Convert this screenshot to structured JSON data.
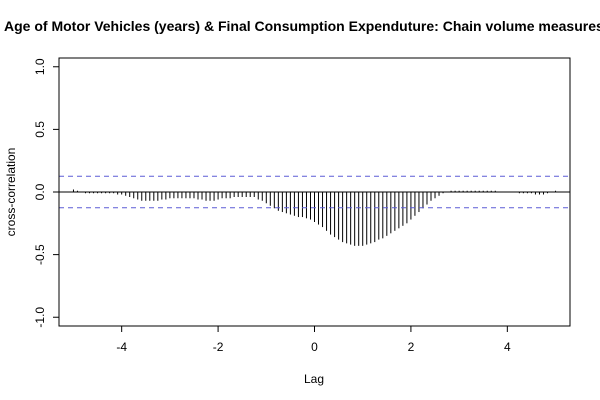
{
  "chart_data": {
    "type": "bar",
    "title": "Age of Motor Vehicles (years) & Final Consumption Expenduture: Chain volume measures",
    "xlabel": "Lag",
    "ylabel": "cross-correlation",
    "xlim": [
      -5.3,
      5.3
    ],
    "ylim": [
      -1.07,
      1.07
    ],
    "x_ticks": [
      -4,
      -2,
      0,
      2,
      4
    ],
    "x_tick_labels": [
      "-4",
      "-2",
      "0",
      "2",
      "4"
    ],
    "y_ticks": [
      -1.0,
      -0.5,
      0.0,
      0.5,
      1.0
    ],
    "y_tick_labels": [
      "-1.0",
      "-0.5",
      "0.0",
      "0.5",
      "1.0"
    ],
    "confidence_bound": 0.126,
    "grid": false,
    "colors": {
      "bars": "#000000",
      "confidence_lines": "#5b5bd6",
      "zero_line": "#000000",
      "axes": "#000000"
    },
    "series": [
      {
        "x": [
          -5.0,
          -4.9167,
          -4.8333,
          -4.75,
          -4.6667,
          -4.5833,
          -4.5,
          -4.4167,
          -4.3333,
          -4.25,
          -4.1667,
          -4.0833,
          -4.0,
          -3.9167,
          -3.8333,
          -3.75,
          -3.6667,
          -3.5833,
          -3.5,
          -3.4167,
          -3.3333,
          -3.25,
          -3.1667,
          -3.0833,
          -3.0,
          -2.9167,
          -2.8333,
          -2.75,
          -2.6667,
          -2.5833,
          -2.5,
          -2.4167,
          -2.3333,
          -2.25,
          -2.1667,
          -2.0833,
          -2.0,
          -1.9167,
          -1.8333,
          -1.75,
          -1.6667,
          -1.5833,
          -1.5,
          -1.4167,
          -1.3333,
          -1.25,
          -1.1667,
          -1.0833,
          -1.0,
          -0.9167,
          -0.8333,
          -0.75,
          -0.6667,
          -0.5833,
          -0.5,
          -0.4167,
          -0.3333,
          -0.25,
          -0.1667,
          -0.0833,
          0.0,
          0.0833,
          0.1667,
          0.25,
          0.3333,
          0.4167,
          0.5,
          0.5833,
          0.6667,
          0.75,
          0.8333,
          0.9167,
          1.0,
          1.0833,
          1.1667,
          1.25,
          1.3333,
          1.4167,
          1.5,
          1.5833,
          1.6667,
          1.75,
          1.8333,
          1.9167,
          2.0,
          2.0833,
          2.1667,
          2.25,
          2.3333,
          2.4167,
          2.5,
          2.5833,
          2.6667,
          2.75,
          2.8333,
          2.9167,
          3.0,
          3.0833,
          3.1667,
          3.25,
          3.3333,
          3.4167,
          3.5,
          3.5833,
          3.6667,
          3.75,
          3.8333,
          3.9167,
          4.0,
          4.0833,
          4.1667,
          4.25,
          4.3333,
          4.4167,
          4.5,
          4.5833,
          4.6667,
          4.75,
          4.8333,
          4.9167,
          5.0
        ],
        "values": [
          0.02,
          0.01,
          0.0,
          -0.01,
          -0.01,
          -0.01,
          -0.01,
          -0.01,
          -0.01,
          -0.01,
          -0.01,
          -0.02,
          -0.02,
          -0.03,
          -0.04,
          -0.05,
          -0.06,
          -0.07,
          -0.07,
          -0.07,
          -0.07,
          -0.07,
          -0.06,
          -0.06,
          -0.05,
          -0.05,
          -0.05,
          -0.05,
          -0.05,
          -0.05,
          -0.05,
          -0.06,
          -0.06,
          -0.07,
          -0.07,
          -0.07,
          -0.06,
          -0.05,
          -0.05,
          -0.05,
          -0.04,
          -0.04,
          -0.04,
          -0.04,
          -0.04,
          -0.04,
          -0.06,
          -0.07,
          -0.09,
          -0.11,
          -0.13,
          -0.15,
          -0.16,
          -0.17,
          -0.18,
          -0.19,
          -0.2,
          -0.2,
          -0.21,
          -0.22,
          -0.24,
          -0.26,
          -0.28,
          -0.31,
          -0.34,
          -0.36,
          -0.38,
          -0.4,
          -0.41,
          -0.42,
          -0.43,
          -0.43,
          -0.43,
          -0.42,
          -0.41,
          -0.4,
          -0.38,
          -0.37,
          -0.35,
          -0.33,
          -0.31,
          -0.29,
          -0.27,
          -0.25,
          -0.22,
          -0.19,
          -0.16,
          -0.13,
          -0.1,
          -0.07,
          -0.05,
          -0.03,
          -0.01,
          0.0,
          0.01,
          0.01,
          0.01,
          0.01,
          0.01,
          0.01,
          0.01,
          0.01,
          0.01,
          0.01,
          0.01,
          0.01,
          0.0,
          0.0,
          0.0,
          0.0,
          0.0,
          -0.01,
          -0.01,
          -0.01,
          -0.01,
          -0.02,
          -0.02,
          -0.02,
          -0.01,
          0.0,
          0.01
        ]
      }
    ]
  }
}
